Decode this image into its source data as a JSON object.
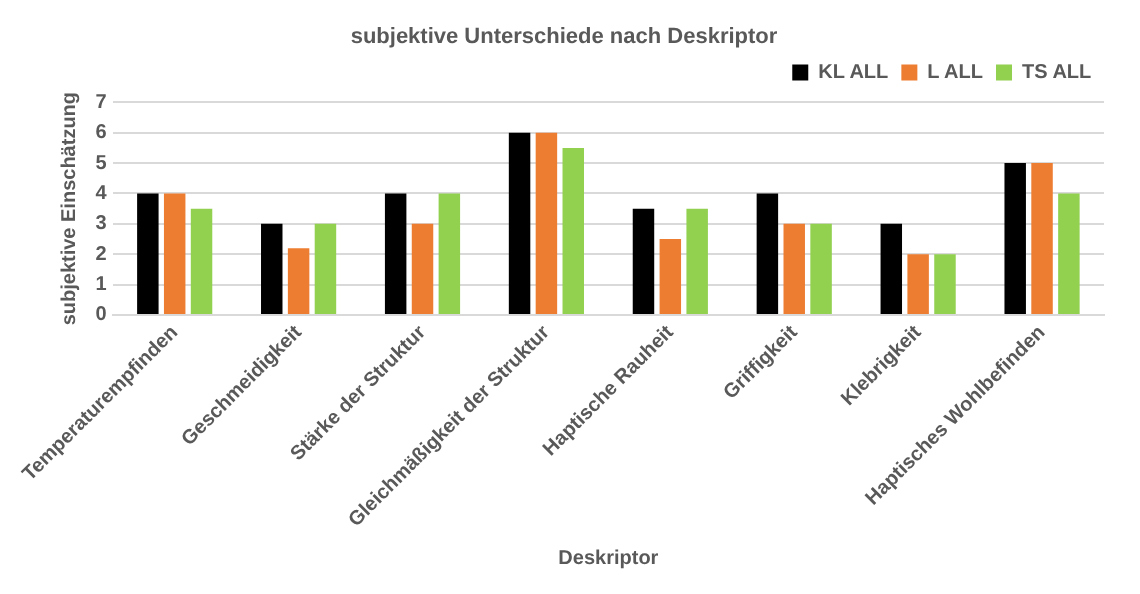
{
  "chart_data": {
    "type": "bar",
    "title": "subjektive Unterschiede nach Deskriptor",
    "xlabel": "Deskriptor",
    "ylabel": "subjektive Einschätzung",
    "categories": [
      "Temperaturempfinden",
      "Geschmeidigkeit",
      "Stärke der Struktur",
      "Gleichmäßigkeit der Struktur",
      "Haptische Rauheit",
      "Griffigkeit",
      "Klebrigkeit",
      "Haptisches Wohlbefinden"
    ],
    "series": [
      {
        "name": "KL ALL",
        "color": "#000000",
        "values": [
          4,
          3,
          4,
          6,
          3.5,
          4,
          3,
          5
        ]
      },
      {
        "name": "L ALL",
        "color": "#ed7d31",
        "values": [
          4,
          2.2,
          3,
          6,
          2.5,
          3,
          2,
          5
        ]
      },
      {
        "name": "TS ALL",
        "color": "#92d050",
        "values": [
          3.5,
          3,
          4,
          5.5,
          3.5,
          3,
          2,
          4
        ]
      }
    ],
    "ylim": [
      0,
      7
    ],
    "yticks": [
      0,
      1,
      2,
      3,
      4,
      5,
      6,
      7
    ],
    "grid": "y",
    "legend": "top right"
  }
}
